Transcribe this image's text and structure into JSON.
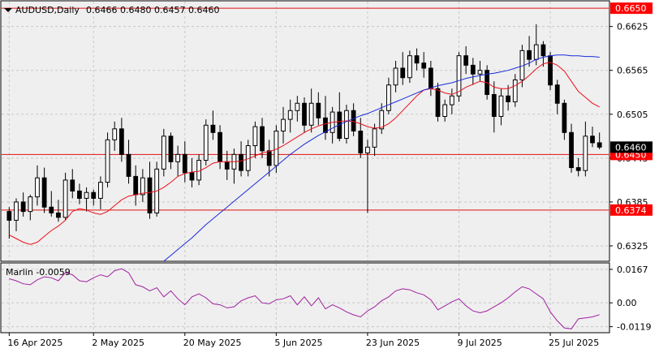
{
  "header": {
    "symbol_label": "AUDUSD,Daily",
    "ohlc_text": "0.6466 0.6480 0.6457 0.6460"
  },
  "indicator": {
    "label": "Marlin -0.0059"
  },
  "colors": {
    "background": "#ffffff",
    "plot_bg": "#efefef",
    "grid": "#c8c8c8",
    "candle": "#000000",
    "ma_fast": "#e8101a",
    "ma_slow": "#1a2ad8",
    "hline": "#e01010",
    "price_tag_red": "#ff0000",
    "oscillator": "#a020a0"
  },
  "chart_data": {
    "type": "candlestick",
    "symbol": "AUDUSD",
    "timeframe": "Daily",
    "price_axis_ticks": [
      "0.6625",
      "0.6565",
      "0.6505",
      "0.6445",
      "0.6385",
      "0.6325"
    ],
    "price_axis_values": [
      0.6625,
      0.6565,
      0.6505,
      0.6445,
      0.6385,
      0.6325
    ],
    "ylim": [
      0.6305,
      0.6659
    ],
    "time_axis_labels": [
      "16 Apr 2025",
      "2 May 2025",
      "20 May 2025",
      "5 Jun 2025",
      "23 Jun 2025",
      "9 Jul 2025",
      "25 Jul 2025"
    ],
    "time_axis_label_index": [
      0,
      12,
      25,
      38,
      51,
      64,
      77
    ],
    "horizontal_levels": [
      {
        "value": 0.665,
        "label": "0.6650"
      },
      {
        "value": 0.645,
        "label": "0.6450"
      },
      {
        "value": 0.6374,
        "label": "0.6374"
      }
    ],
    "current_price": {
      "value": 0.646,
      "label": "0.6460"
    },
    "candles": [
      [
        0.6372,
        0.6378,
        0.6335,
        0.636
      ],
      [
        0.636,
        0.639,
        0.6345,
        0.6385
      ],
      [
        0.6385,
        0.6398,
        0.6365,
        0.6372
      ],
      [
        0.6372,
        0.6395,
        0.636,
        0.6392
      ],
      [
        0.6392,
        0.6435,
        0.638,
        0.6418
      ],
      [
        0.6418,
        0.6432,
        0.637,
        0.6378
      ],
      [
        0.6378,
        0.64,
        0.6365,
        0.637
      ],
      [
        0.637,
        0.6388,
        0.6358,
        0.6364
      ],
      [
        0.6364,
        0.6425,
        0.636,
        0.6415
      ],
      [
        0.6415,
        0.643,
        0.639,
        0.64
      ],
      [
        0.64,
        0.641,
        0.6382,
        0.639
      ],
      [
        0.639,
        0.6405,
        0.6372,
        0.6398
      ],
      [
        0.6398,
        0.6402,
        0.638,
        0.639
      ],
      [
        0.639,
        0.642,
        0.6375,
        0.6412
      ],
      [
        0.6412,
        0.648,
        0.6405,
        0.647
      ],
      [
        0.647,
        0.6495,
        0.6455,
        0.6485
      ],
      [
        0.6485,
        0.65,
        0.644,
        0.645
      ],
      [
        0.645,
        0.647,
        0.641,
        0.642
      ],
      [
        0.642,
        0.6435,
        0.638,
        0.6395
      ],
      [
        0.6395,
        0.643,
        0.6385,
        0.6418
      ],
      [
        0.6418,
        0.644,
        0.6362,
        0.637
      ],
      [
        0.637,
        0.644,
        0.6365,
        0.643
      ],
      [
        0.643,
        0.6485,
        0.642,
        0.6475
      ],
      [
        0.6475,
        0.648,
        0.643,
        0.644
      ],
      [
        0.644,
        0.6462,
        0.642,
        0.645
      ],
      [
        0.645,
        0.6468,
        0.6412,
        0.6425
      ],
      [
        0.6425,
        0.6445,
        0.6405,
        0.6415
      ],
      [
        0.6415,
        0.645,
        0.6408,
        0.6442
      ],
      [
        0.6442,
        0.6498,
        0.6435,
        0.649
      ],
      [
        0.649,
        0.651,
        0.647,
        0.648
      ],
      [
        0.648,
        0.649,
        0.643,
        0.644
      ],
      [
        0.644,
        0.6455,
        0.6415,
        0.643
      ],
      [
        0.643,
        0.6458,
        0.641,
        0.645
      ],
      [
        0.645,
        0.6468,
        0.642,
        0.6428
      ],
      [
        0.6428,
        0.647,
        0.642,
        0.6462
      ],
      [
        0.6462,
        0.6495,
        0.6445,
        0.6488
      ],
      [
        0.6488,
        0.65,
        0.6445,
        0.6455
      ],
      [
        0.6455,
        0.647,
        0.642,
        0.6435
      ],
      [
        0.6435,
        0.649,
        0.6425,
        0.6482
      ],
      [
        0.6482,
        0.6515,
        0.6465,
        0.6498
      ],
      [
        0.6498,
        0.6525,
        0.648,
        0.651
      ],
      [
        0.651,
        0.653,
        0.6495,
        0.652
      ],
      [
        0.652,
        0.6528,
        0.648,
        0.649
      ],
      [
        0.649,
        0.654,
        0.648,
        0.652
      ],
      [
        0.652,
        0.6535,
        0.649,
        0.65
      ],
      [
        0.65,
        0.653,
        0.647,
        0.648
      ],
      [
        0.648,
        0.6515,
        0.6465,
        0.6508
      ],
      [
        0.6508,
        0.6535,
        0.6468,
        0.6472
      ],
      [
        0.6472,
        0.6518,
        0.6465,
        0.651
      ],
      [
        0.651,
        0.652,
        0.6475,
        0.6482
      ],
      [
        0.6482,
        0.65,
        0.6445,
        0.6452
      ],
      [
        0.6452,
        0.647,
        0.637,
        0.646
      ],
      [
        0.646,
        0.6492,
        0.6448,
        0.6485
      ],
      [
        0.6485,
        0.652,
        0.6478,
        0.651
      ],
      [
        0.651,
        0.6555,
        0.6505,
        0.6545
      ],
      [
        0.6545,
        0.6578,
        0.6535,
        0.6568
      ],
      [
        0.6568,
        0.659,
        0.6545,
        0.6555
      ],
      [
        0.6555,
        0.6592,
        0.6548,
        0.6585
      ],
      [
        0.6585,
        0.6595,
        0.6565,
        0.6575
      ],
      [
        0.6575,
        0.659,
        0.6555,
        0.6568
      ],
      [
        0.6568,
        0.6578,
        0.653,
        0.654
      ],
      [
        0.654,
        0.6548,
        0.6495,
        0.6502
      ],
      [
        0.6502,
        0.6525,
        0.6495,
        0.6518
      ],
      [
        0.6518,
        0.654,
        0.6505,
        0.653
      ],
      [
        0.653,
        0.659,
        0.6522,
        0.6585
      ],
      [
        0.6585,
        0.6598,
        0.656,
        0.6572
      ],
      [
        0.6572,
        0.6582,
        0.6545,
        0.656
      ],
      [
        0.656,
        0.6578,
        0.655,
        0.6565
      ],
      [
        0.6565,
        0.6572,
        0.6525,
        0.6532
      ],
      [
        0.6532,
        0.655,
        0.648,
        0.6502
      ],
      [
        0.6502,
        0.654,
        0.649,
        0.653
      ],
      [
        0.653,
        0.6545,
        0.651,
        0.6522
      ],
      [
        0.6522,
        0.656,
        0.6515,
        0.6552
      ],
      [
        0.6552,
        0.66,
        0.6542,
        0.6592
      ],
      [
        0.6592,
        0.6612,
        0.657,
        0.658
      ],
      [
        0.658,
        0.6628,
        0.6572,
        0.66
      ],
      [
        0.66,
        0.6605,
        0.657,
        0.6585
      ],
      [
        0.6585,
        0.659,
        0.6538,
        0.6545
      ],
      [
        0.6545,
        0.6552,
        0.6505,
        0.652
      ],
      [
        0.652,
        0.6525,
        0.647,
        0.648
      ],
      [
        0.648,
        0.6492,
        0.6425,
        0.6432
      ],
      [
        0.6432,
        0.6445,
        0.642,
        0.6428
      ],
      [
        0.6428,
        0.6495,
        0.642,
        0.6475
      ],
      [
        0.6475,
        0.6488,
        0.646,
        0.6466
      ],
      [
        0.6466,
        0.648,
        0.6457,
        0.646
      ]
    ],
    "ma_fast": [
      0.634,
      0.6335,
      0.633,
      0.6327,
      0.633,
      0.6338,
      0.6346,
      0.6352,
      0.636,
      0.6372,
      0.6376,
      0.6374,
      0.637,
      0.6368,
      0.6372,
      0.638,
      0.6388,
      0.6393,
      0.6395,
      0.6397,
      0.6398,
      0.64,
      0.6405,
      0.6412,
      0.642,
      0.6424,
      0.6426,
      0.6427,
      0.6432,
      0.6438,
      0.644,
      0.644,
      0.644,
      0.6441,
      0.6444,
      0.6448,
      0.6452,
      0.6454,
      0.6457,
      0.6462,
      0.6468,
      0.6474,
      0.648,
      0.6485,
      0.6489,
      0.6492,
      0.6494,
      0.6495,
      0.6496,
      0.6495,
      0.6492,
      0.6488,
      0.6486,
      0.6487,
      0.6492,
      0.65,
      0.651,
      0.652,
      0.653,
      0.6538,
      0.654,
      0.6538,
      0.6534,
      0.6532,
      0.6536,
      0.6542,
      0.6546,
      0.655,
      0.6548,
      0.6542,
      0.654,
      0.654,
      0.6544,
      0.655,
      0.6558,
      0.6567,
      0.6574,
      0.6576,
      0.6572,
      0.6564,
      0.655,
      0.6536,
      0.6528,
      0.652,
      0.6515
    ],
    "ma_slow": [
      null,
      null,
      null,
      null,
      null,
      null,
      null,
      null,
      null,
      null,
      null,
      null,
      null,
      null,
      null,
      null,
      null,
      null,
      null,
      null,
      null,
      null,
      0.6304,
      0.6312,
      0.632,
      0.6328,
      0.6336,
      0.6345,
      0.6354,
      0.6362,
      0.637,
      0.6378,
      0.6386,
      0.6394,
      0.6402,
      0.641,
      0.6418,
      0.6426,
      0.6434,
      0.6442,
      0.645,
      0.6457,
      0.6464,
      0.647,
      0.6476,
      0.6481,
      0.6486,
      0.6491,
      0.6495,
      0.6499,
      0.6503,
      0.6506,
      0.651,
      0.6514,
      0.6518,
      0.6522,
      0.6526,
      0.653,
      0.6534,
      0.6538,
      0.6541,
      0.6544,
      0.6546,
      0.6548,
      0.6551,
      0.6554,
      0.6556,
      0.6558,
      0.656,
      0.6561,
      0.6563,
      0.6565,
      0.6568,
      0.6571,
      0.6575,
      0.658,
      0.6583,
      0.6585,
      0.6586,
      0.6586,
      0.6585,
      0.6585,
      0.6584,
      0.6584,
      0.6583
    ],
    "oscillator": {
      "name": "Marlin",
      "ticks": [
        "0.0167",
        "0.00",
        "-0.0119"
      ],
      "tick_values": [
        0.0167,
        0.0,
        -0.0119
      ],
      "ylim": [
        -0.0145,
        0.0195
      ],
      "values": [
        0.012,
        0.011,
        0.0095,
        0.009,
        0.0115,
        0.013,
        0.0125,
        0.011,
        0.015,
        0.014,
        0.011,
        0.0105,
        0.0125,
        0.014,
        0.013,
        0.016,
        0.017,
        0.015,
        0.009,
        0.008,
        0.006,
        0.0075,
        0.003,
        0.006,
        0.002,
        -0.001,
        0.003,
        0.0045,
        0.0025,
        -0.0005,
        -0.001,
        -0.0025,
        -0.002,
        0.001,
        0.0025,
        0.0035,
        0.0,
        -0.0005,
        0.0015,
        0.002,
        0.0035,
        -0.001,
        0.003,
        -0.0015,
        0.0025,
        -0.003,
        -0.001,
        -0.0025,
        -0.0045,
        -0.006,
        -0.007,
        -0.004,
        -0.002,
        0.001,
        0.003,
        0.006,
        0.007,
        0.0065,
        0.005,
        0.004,
        0.0015,
        -0.0035,
        -0.0015,
        0.0005,
        0.002,
        -0.0015,
        -0.004,
        -0.005,
        -0.004,
        -0.002,
        0.0,
        0.0025,
        0.0055,
        0.008,
        0.007,
        0.0045,
        0.002,
        -0.0045,
        -0.009,
        -0.0125,
        -0.013,
        -0.008,
        -0.0075,
        -0.007,
        -0.0059
      ]
    }
  }
}
